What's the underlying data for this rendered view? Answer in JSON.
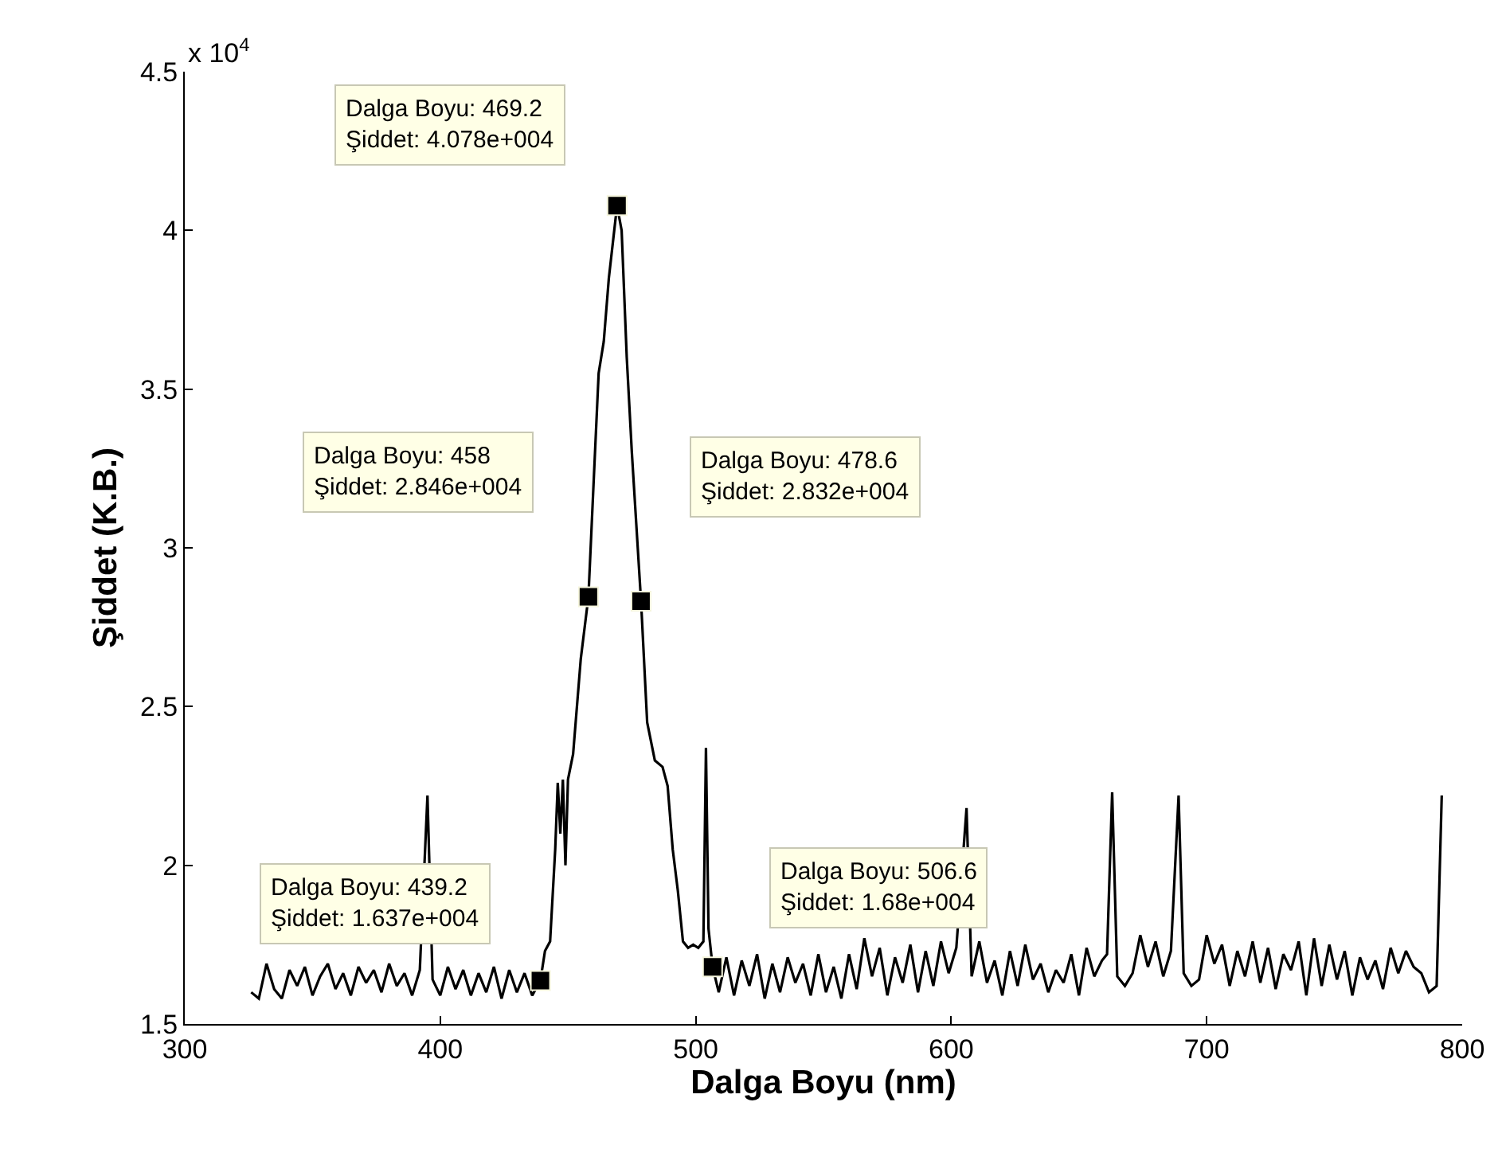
{
  "chart_data": {
    "type": "line",
    "xlabel": "Dalga Boyu (nm)",
    "ylabel": "Şiddet (K.B.)",
    "xlim": [
      300,
      800
    ],
    "xticks": [
      300,
      400,
      500,
      600,
      700,
      800
    ],
    "ylim": [
      1.5,
      4.5
    ],
    "yticks": [
      1.5,
      2,
      2.5,
      3,
      3.5,
      4,
      4.5
    ],
    "series": [
      {
        "color": "#000000",
        "marker": "none",
        "line_style": "solid",
        "x": [
          326,
          329,
          332,
          335,
          338,
          341,
          344,
          347,
          350,
          353,
          356,
          359,
          362,
          365,
          368,
          371,
          374,
          377,
          380,
          383,
          386,
          389,
          392,
          395,
          397,
          400,
          403,
          406,
          409,
          412,
          415,
          418,
          421,
          424,
          427,
          430,
          433,
          436,
          439.2,
          441,
          443,
          445,
          446,
          447,
          448,
          449,
          450,
          452,
          455,
          458,
          460,
          462,
          464,
          466,
          469.2,
          471,
          473,
          475,
          478.6,
          481,
          484,
          487,
          489,
          491,
          493,
          495,
          497,
          499,
          501,
          503,
          504,
          505,
          506.6,
          509,
          512,
          515,
          518,
          521,
          524,
          527,
          530,
          533,
          536,
          539,
          542,
          545,
          548,
          551,
          554,
          557,
          560,
          563,
          566,
          569,
          572,
          575,
          578,
          581,
          584,
          587,
          590,
          593,
          596,
          599,
          602,
          606,
          608,
          611,
          614,
          617,
          620,
          623,
          626,
          629,
          632,
          635,
          638,
          641,
          644,
          647,
          650,
          653,
          656,
          659,
          661,
          663,
          665,
          668,
          671,
          674,
          677,
          680,
          683,
          686,
          689,
          691,
          694,
          697,
          700,
          703,
          706,
          709,
          712,
          715,
          718,
          721,
          724,
          727,
          730,
          733,
          736,
          739,
          742,
          745,
          748,
          751,
          754,
          757,
          760,
          763,
          766,
          769,
          772,
          775,
          778,
          781,
          784,
          787,
          790,
          792
        ],
        "values": [
          1.6,
          1.58,
          1.69,
          1.61,
          1.58,
          1.67,
          1.62,
          1.68,
          1.59,
          1.65,
          1.69,
          1.61,
          1.66,
          1.59,
          1.68,
          1.63,
          1.67,
          1.6,
          1.69,
          1.62,
          1.66,
          1.59,
          1.67,
          2.22,
          1.64,
          1.59,
          1.68,
          1.61,
          1.67,
          1.59,
          1.66,
          1.6,
          1.68,
          1.58,
          1.67,
          1.6,
          1.66,
          1.59,
          1.637,
          1.73,
          1.76,
          2.05,
          2.26,
          2.1,
          2.27,
          2.0,
          2.27,
          2.35,
          2.65,
          2.846,
          3.2,
          3.55,
          3.65,
          3.85,
          4.078,
          4.0,
          3.6,
          3.3,
          2.832,
          2.45,
          2.33,
          2.31,
          2.25,
          2.05,
          1.92,
          1.76,
          1.74,
          1.75,
          1.74,
          1.76,
          2.37,
          1.8,
          1.68,
          1.6,
          1.71,
          1.59,
          1.7,
          1.62,
          1.72,
          1.58,
          1.69,
          1.6,
          1.71,
          1.63,
          1.69,
          1.59,
          1.72,
          1.6,
          1.68,
          1.58,
          1.72,
          1.61,
          1.77,
          1.65,
          1.74,
          1.59,
          1.71,
          1.63,
          1.75,
          1.6,
          1.73,
          1.62,
          1.76,
          1.66,
          1.74,
          2.18,
          1.65,
          1.76,
          1.63,
          1.7,
          1.59,
          1.73,
          1.62,
          1.75,
          1.64,
          1.69,
          1.6,
          1.67,
          1.63,
          1.72,
          1.59,
          1.74,
          1.65,
          1.7,
          1.72,
          2.23,
          1.65,
          1.62,
          1.66,
          1.78,
          1.68,
          1.76,
          1.65,
          1.73,
          2.22,
          1.66,
          1.62,
          1.64,
          1.78,
          1.69,
          1.75,
          1.62,
          1.73,
          1.65,
          1.76,
          1.63,
          1.74,
          1.61,
          1.72,
          1.67,
          1.76,
          1.59,
          1.77,
          1.62,
          1.75,
          1.64,
          1.73,
          1.59,
          1.71,
          1.64,
          1.7,
          1.61,
          1.74,
          1.66,
          1.73,
          1.68,
          1.66,
          1.6,
          1.62,
          2.22
        ]
      },
      {
        "type": "scatter",
        "color": "#000000",
        "marker": "square",
        "x": [
          469.2,
          458,
          478.6,
          439.2,
          506.6
        ],
        "values": [
          4.078,
          2.846,
          2.832,
          1.637,
          1.68
        ]
      }
    ],
    "annotations": [
      "x 10$^{4}$",
      "Dalga Boyu: 469.2\nŞiddet: 4.078e+004",
      "Dalga Boyu: 458\nŞiddet: 2.846e+004",
      "Dalga Boyu: 478.6\nŞiddet: 2.832e+004",
      "Dalga Boyu: 439.2\nŞiddet: 1.637e+004",
      "Dalga Boyu: 506.6\nŞiddet: 1.68e+004"
    ]
  }
}
